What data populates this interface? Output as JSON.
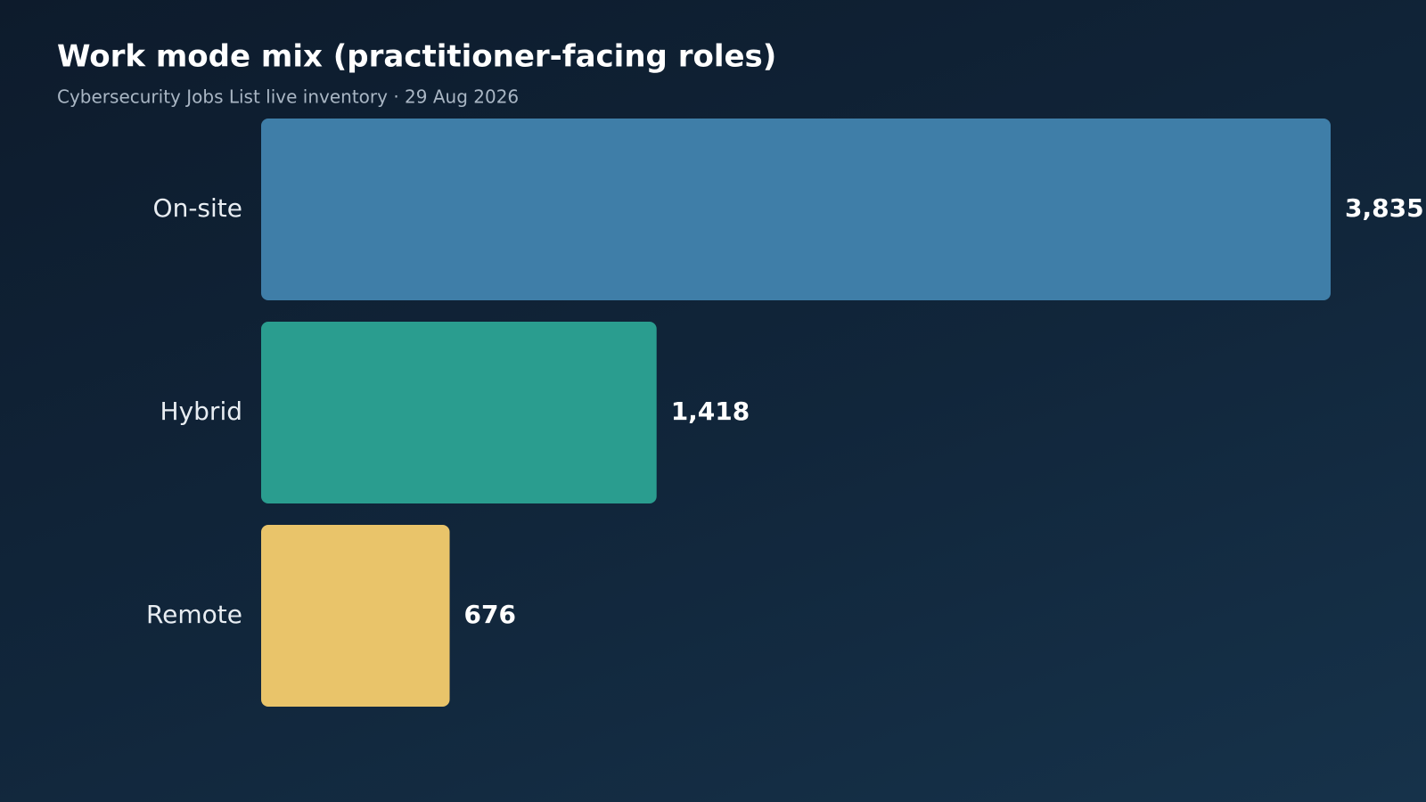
{
  "chart_data": {
    "type": "bar",
    "orientation": "horizontal",
    "title": "Work mode mix (practitioner-facing roles)",
    "subtitle": "Cybersecurity Jobs List live inventory · 29 Aug 2026",
    "categories": [
      "On-site",
      "Hybrid",
      "Remote"
    ],
    "values": [
      3835,
      1418,
      676
    ],
    "value_labels": [
      "3,835",
      "1,418",
      "676"
    ],
    "colors": [
      "#3f7ea8",
      "#2a9d8f",
      "#e9c46a"
    ]
  }
}
